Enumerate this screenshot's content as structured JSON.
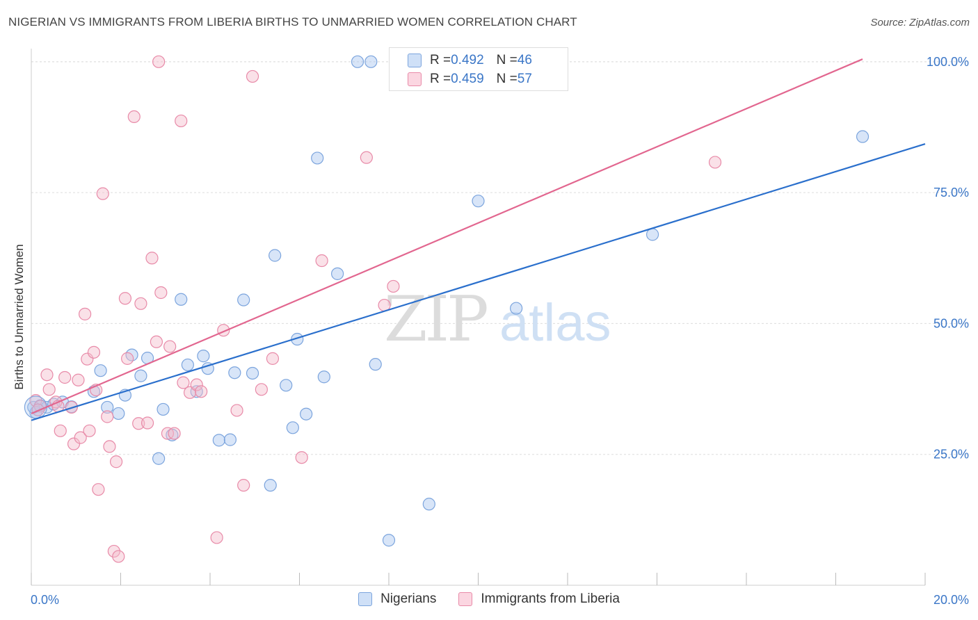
{
  "title": "NIGERIAN VS IMMIGRANTS FROM LIBERIA BIRTHS TO UNMARRIED WOMEN CORRELATION CHART",
  "source": "Source: ZipAtlas.com",
  "watermark": {
    "zip": "ZIP",
    "atlas": "atlas"
  },
  "legend_stats": [
    {
      "r_label": "R = ",
      "r_value": "0.492",
      "n_label": "N = ",
      "n_value": "46",
      "color": "#a9c6ef",
      "border": "#7ba4dd"
    },
    {
      "r_label": "R = ",
      "r_value": "0.459",
      "n_label": "N = ",
      "n_value": "57",
      "color": "#f5bccd",
      "border": "#e88aa8"
    }
  ],
  "bottom_legend": [
    "Nigerians",
    "Immigrants from Liberia"
  ],
  "colors": {
    "blue_fill": "#a9c6ef",
    "blue_stroke": "#7ba4dd",
    "blue_line": "#2a6fcc",
    "pink_fill": "#f5bccd",
    "pink_stroke": "#e88aa8",
    "pink_line": "#e2668f",
    "axis_text": "#3a76c7",
    "grid": "#dddddd"
  },
  "chart_data": {
    "type": "scatter",
    "title": "NIGERIAN VS IMMIGRANTS FROM LIBERIA BIRTHS TO UNMARRIED WOMEN CORRELATION CHART",
    "xlabel": "",
    "ylabel": "Births to Unmarried Women",
    "xlim": [
      0,
      20
    ],
    "ylim": [
      0,
      102.5
    ],
    "x_tick_labels": [
      "0.0%",
      "20.0%"
    ],
    "y_ticks": [
      25,
      50,
      75,
      100
    ],
    "y_tick_labels": [
      "25.0%",
      "50.0%",
      "75.0%",
      "100.0%"
    ],
    "grid": true,
    "legend_position": "top-center",
    "series": [
      {
        "name": "Nigerians",
        "r": 0.492,
        "n": 46,
        "trend": {
          "x": [
            0,
            20
          ],
          "y": [
            31.5,
            84.3
          ]
        },
        "points": [
          [
            0.1,
            33.0
          ],
          [
            0.2,
            34.3
          ],
          [
            0.35,
            34.0
          ],
          [
            0.5,
            34.6
          ],
          [
            0.7,
            35.0
          ],
          [
            0.9,
            34.1
          ],
          [
            1.4,
            37.0
          ],
          [
            1.55,
            41.0
          ],
          [
            1.7,
            34.0
          ],
          [
            1.95,
            32.8
          ],
          [
            2.1,
            36.3
          ],
          [
            2.25,
            44.0
          ],
          [
            2.45,
            40.0
          ],
          [
            2.6,
            43.4
          ],
          [
            2.85,
            24.2
          ],
          [
            2.95,
            33.6
          ],
          [
            3.15,
            28.7
          ],
          [
            3.35,
            54.6
          ],
          [
            3.5,
            42.1
          ],
          [
            3.7,
            37.0
          ],
          [
            3.85,
            43.8
          ],
          [
            3.95,
            41.4
          ],
          [
            4.2,
            27.7
          ],
          [
            4.45,
            27.8
          ],
          [
            4.55,
            40.6
          ],
          [
            4.75,
            54.5
          ],
          [
            4.95,
            40.5
          ],
          [
            5.45,
            63.0
          ],
          [
            5.7,
            38.2
          ],
          [
            5.35,
            19.1
          ],
          [
            5.85,
            30.1
          ],
          [
            5.95,
            47.0
          ],
          [
            6.15,
            32.7
          ],
          [
            6.4,
            81.6
          ],
          [
            6.55,
            39.8
          ],
          [
            6.85,
            59.5
          ],
          [
            7.3,
            100.0
          ],
          [
            7.6,
            100.0
          ],
          [
            7.7,
            42.2
          ],
          [
            8.0,
            8.6
          ],
          [
            8.9,
            15.5
          ],
          [
            10.0,
            73.4
          ],
          [
            10.85,
            52.9
          ],
          [
            13.9,
            67.0
          ],
          [
            18.6,
            85.7
          ],
          [
            0.05,
            34.0
          ]
        ]
      },
      {
        "name": "Immigrants from Liberia",
        "r": 0.459,
        "n": 57,
        "trend": {
          "x": [
            0,
            18.6
          ],
          "y": [
            32.8,
            100.5
          ]
        },
        "points": [
          [
            0.1,
            35.3
          ],
          [
            0.2,
            34.2
          ],
          [
            0.35,
            40.2
          ],
          [
            0.4,
            37.4
          ],
          [
            0.55,
            35.0
          ],
          [
            0.65,
            29.5
          ],
          [
            0.75,
            39.7
          ],
          [
            0.9,
            34.0
          ],
          [
            0.95,
            27.0
          ],
          [
            1.05,
            39.2
          ],
          [
            1.1,
            28.2
          ],
          [
            1.2,
            51.8
          ],
          [
            1.25,
            43.2
          ],
          [
            1.3,
            29.5
          ],
          [
            1.4,
            44.5
          ],
          [
            1.45,
            37.3
          ],
          [
            1.5,
            18.3
          ],
          [
            1.6,
            74.8
          ],
          [
            1.7,
            32.2
          ],
          [
            1.75,
            26.5
          ],
          [
            1.85,
            6.5
          ],
          [
            1.9,
            23.6
          ],
          [
            1.95,
            5.5
          ],
          [
            2.1,
            54.8
          ],
          [
            2.15,
            43.3
          ],
          [
            2.3,
            89.5
          ],
          [
            2.4,
            30.9
          ],
          [
            2.45,
            53.8
          ],
          [
            2.6,
            31.0
          ],
          [
            2.7,
            62.5
          ],
          [
            2.8,
            46.5
          ],
          [
            2.85,
            100.0
          ],
          [
            2.9,
            55.9
          ],
          [
            3.05,
            29.0
          ],
          [
            3.1,
            45.6
          ],
          [
            3.2,
            29.0
          ],
          [
            3.35,
            88.7
          ],
          [
            3.4,
            38.7
          ],
          [
            3.55,
            36.8
          ],
          [
            3.7,
            38.3
          ],
          [
            3.8,
            37.0
          ],
          [
            4.15,
            9.1
          ],
          [
            4.3,
            48.7
          ],
          [
            4.6,
            33.4
          ],
          [
            4.75,
            19.1
          ],
          [
            4.95,
            97.2
          ],
          [
            5.15,
            37.4
          ],
          [
            5.4,
            43.3
          ],
          [
            6.05,
            24.4
          ],
          [
            6.5,
            62.0
          ],
          [
            7.5,
            81.7
          ],
          [
            7.9,
            53.5
          ],
          [
            8.1,
            57.1
          ],
          [
            11.2,
            100.0
          ],
          [
            15.3,
            80.8
          ],
          [
            0.15,
            33.5
          ],
          [
            0.6,
            34.2
          ]
        ]
      }
    ]
  }
}
